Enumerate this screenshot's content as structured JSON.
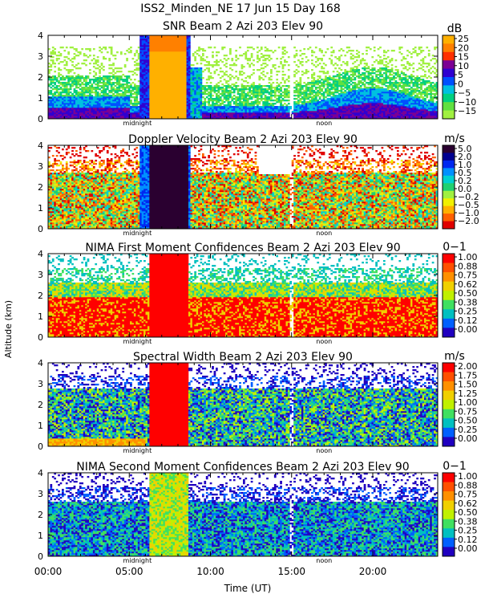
{
  "figure": {
    "title": "ISS2_Minden_NE   17 Jun 15 Day 168",
    "ylabel": "Altitude (km)",
    "xlabel": "Time (UT)",
    "x_ticks": [
      "00:00",
      "05:00",
      "10:00",
      "15:00",
      "20:00"
    ],
    "midnight_label": "midnight",
    "noon_label": "noon"
  },
  "chart_data": [
    {
      "type": "heatmap",
      "title": "SNR Beam 2 Azi 203 Elev 90",
      "unit": "dB",
      "x_range": [
        0,
        24
      ],
      "ylim": [
        0,
        4
      ],
      "y_ticks": [
        "0",
        "1",
        "2",
        "3",
        "4"
      ],
      "colorbar_labels": [
        "25",
        "20",
        "15",
        "10",
        "5",
        "0",
        "−5",
        "−10",
        "−15"
      ],
      "colorbar_colors": [
        "#FFB000",
        "#FF8000",
        "#FF3000",
        "#7C0094",
        "#3000D0",
        "#0050FF",
        "#00C0E0",
        "#00D080",
        "#60E040",
        "#A0F040"
      ]
    },
    {
      "type": "heatmap",
      "title": "Doppler Velocity Beam 2 Azi 203 Elev 90",
      "unit": "m/s",
      "x_range": [
        0,
        24
      ],
      "ylim": [
        0,
        4
      ],
      "y_ticks": [
        "0",
        "1",
        "2",
        "3",
        "4"
      ],
      "colorbar_labels": [
        "5.0",
        "2.0",
        "1.0",
        "0.5",
        "0.2",
        "0.0",
        "−0.2",
        "−0.5",
        "−1.0",
        "−2.0"
      ],
      "colorbar_colors": [
        "#2A0030",
        "#000090",
        "#0028F0",
        "#0090FF",
        "#00D0D0",
        "#20D070",
        "#A0F040",
        "#F0F000",
        "#FFB000",
        "#FF6000",
        "#E00000"
      ]
    },
    {
      "type": "heatmap",
      "title": "NIMA First Moment Confidences Beam 2 Azi 203 Elev 90",
      "unit": "0−1",
      "x_range": [
        0,
        24
      ],
      "ylim": [
        0,
        4
      ],
      "y_ticks": [
        "0",
        "1",
        "2",
        "3",
        "4"
      ],
      "colorbar_labels": [
        "1.00",
        "0.88",
        "0.75",
        "0.62",
        "0.50",
        "0.38",
        "0.25",
        "0.12",
        "0.00"
      ],
      "colorbar_colors": [
        "#FF0000",
        "#FF5000",
        "#FF9000",
        "#F0D000",
        "#C0F000",
        "#40E060",
        "#00C0C0",
        "#0060FF",
        "#2000C0"
      ]
    },
    {
      "type": "heatmap",
      "title": "Spectral Width Beam 2 Azi 203 Elev 90",
      "unit": "m/s",
      "x_range": [
        0,
        24
      ],
      "ylim": [
        0,
        4
      ],
      "y_ticks": [
        "0",
        "1",
        "2",
        "3",
        "4"
      ],
      "colorbar_labels": [
        "2.00",
        "1.75",
        "1.50",
        "1.25",
        "1.00",
        "0.75",
        "0.50",
        "0.25",
        "0.00"
      ],
      "colorbar_colors": [
        "#FF0000",
        "#FF5000",
        "#FF9000",
        "#F0D000",
        "#C0F000",
        "#40E060",
        "#00C0C0",
        "#0060FF",
        "#2000C0"
      ]
    },
    {
      "type": "heatmap",
      "title": "NIMA Second Moment Confidences Beam 2 Azi 203 Elev 90",
      "unit": "0−1",
      "x_range": [
        0,
        24
      ],
      "ylim": [
        0,
        4
      ],
      "y_ticks": [
        "0",
        "1",
        "2",
        "3",
        "4"
      ],
      "colorbar_labels": [
        "1.00",
        "0.88",
        "0.75",
        "0.62",
        "0.50",
        "0.38",
        "0.25",
        "0.12",
        "0.00"
      ],
      "colorbar_colors": [
        "#FF0000",
        "#FF5000",
        "#FF9000",
        "#F0D000",
        "#C0F000",
        "#40E060",
        "#00C0C0",
        "#0060FF",
        "#2000C0"
      ]
    }
  ]
}
